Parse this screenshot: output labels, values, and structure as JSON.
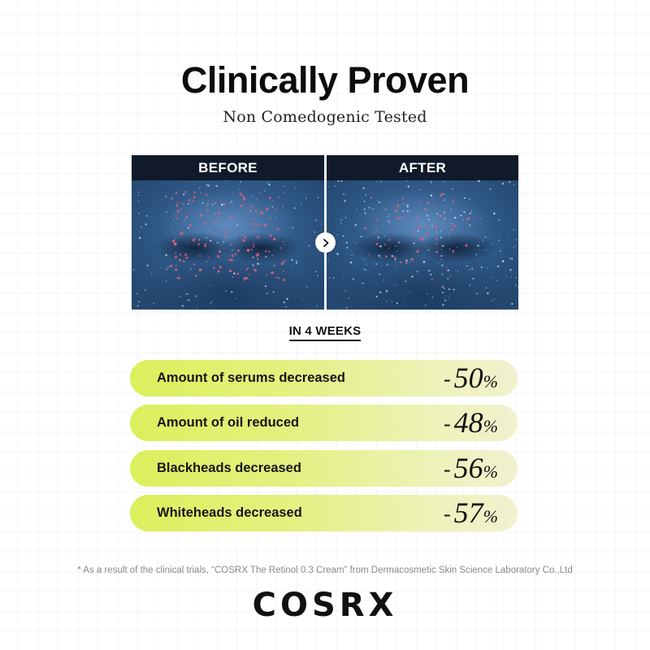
{
  "header": {
    "title": "Clinically Proven",
    "subtitle": "Non Comedogenic Tested"
  },
  "comparison": {
    "before_label": "BEFORE",
    "after_label": "AFTER",
    "toggle_icon": "chevron-right-icon",
    "colors": {
      "header_band": "#101a2a",
      "skin_base": "#2e5a8a",
      "blemish": "#e0607a"
    }
  },
  "period": {
    "label": "IN 4 WEEKS"
  },
  "results": [
    {
      "label": "Amount of serums decreased",
      "sign": "-",
      "value": "50",
      "unit": "%"
    },
    {
      "label": "Amount of oil reduced",
      "sign": "-",
      "value": "48",
      "unit": "%"
    },
    {
      "label": "Blackheads decreased",
      "sign": "-",
      "value": "56",
      "unit": "%"
    },
    {
      "label": "Whiteheads decreased",
      "sign": "-",
      "value": "57",
      "unit": "%"
    }
  ],
  "pill_colors": {
    "start": "#dcef5c",
    "end": "#f1f1cf"
  },
  "footnote": "* As a result of the clinical trials, “COSRX The Retinol 0.3 Cream” from Dermacosmetic Skin Science Laboratory Co.,Ltd",
  "brand": {
    "logo_text": "COSRX"
  }
}
